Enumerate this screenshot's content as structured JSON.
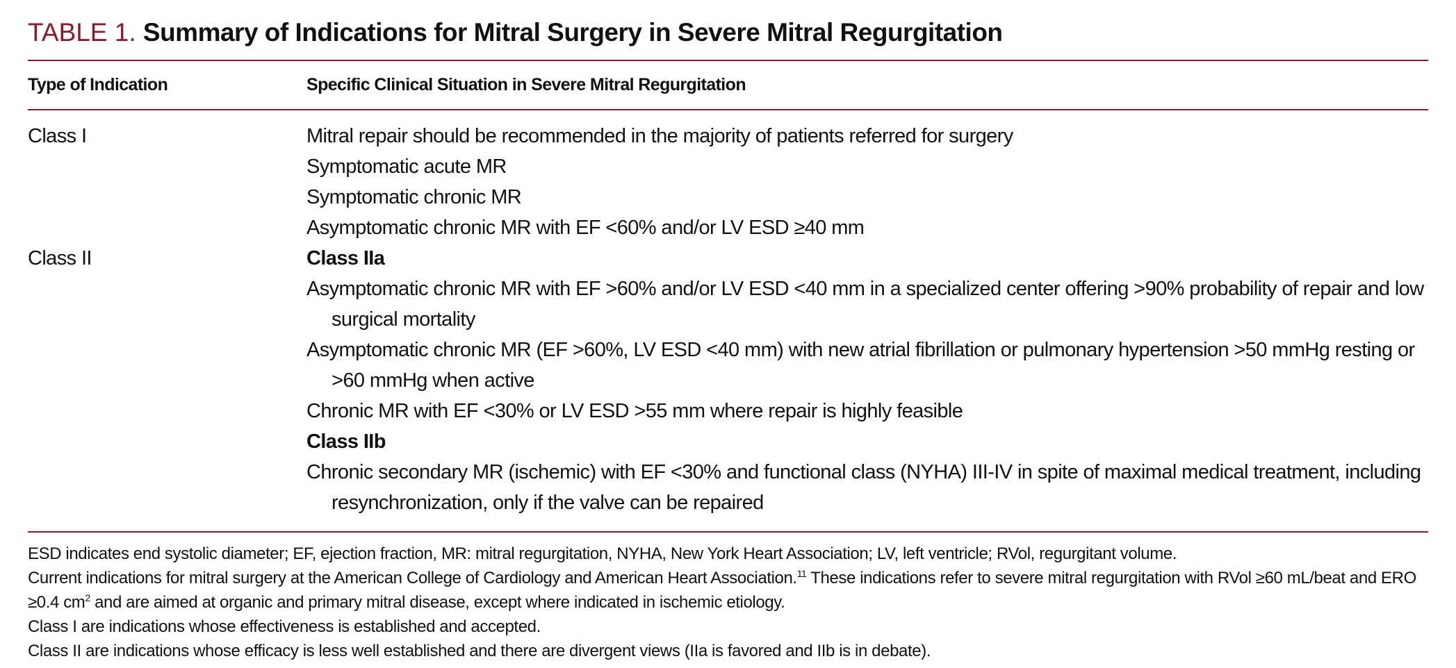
{
  "title": {
    "label": "TABLE 1.",
    "text": "Summary of Indications for Mitral Surgery in Severe Mitral Regurgitation"
  },
  "table": {
    "header": [
      "Type of Indication",
      "Specific Clinical Situation in Severe Mitral Regurgitation"
    ],
    "rows": [
      {
        "type": "Class I",
        "groups": [
          {
            "items": [
              "Mitral repair should be recommended in the majority of patients referred for surgery",
              "Symptomatic acute MR",
              "Symptomatic chronic MR",
              "Asymptomatic chronic MR with EF <60% and/or LV ESD ≥40 mm"
            ]
          }
        ]
      },
      {
        "type": "Class II",
        "groups": [
          {
            "heading": "Class IIa",
            "items": [
              "Asymptomatic chronic MR with EF >60% and/or LV ESD <40 mm in a specialized center offering >90% probability of repair and low surgical mortality",
              "Asymptomatic chronic MR (EF >60%, LV ESD <40 mm) with new atrial fibrillation or pulmonary hypertension >50 mmHg resting or >60 mmHg when active",
              "Chronic MR with EF <30% or LV ESD >55 mm where repair is highly feasible"
            ]
          },
          {
            "heading": "Class IIb",
            "items": [
              "Chronic secondary MR (ischemic) with EF <30% and functional class (NYHA) III-IV in spite of maximal medical treatment, including resynchronization, only if the valve can be repaired"
            ]
          }
        ]
      }
    ]
  },
  "footnotes": [
    [
      "ESD indicates end systolic diameter; EF, ejection fraction, MR: mitral regurgitation, NYHA, New York Heart Association; LV, left ventricle; RVol, regurgitant volume."
    ],
    [
      "Current indications for mitral surgery at the American College of Cardiology and American Heart Association.",
      {
        "sup": "11"
      },
      " These indications refer to severe mitral regurgitation with RVol ≥60 mL/beat and ERO ≥0.4 cm",
      {
        "sup": "2"
      },
      " and are aimed at organic and primary mitral disease, except where indicated in ischemic etiology."
    ],
    [
      "Class I are indications whose effectiveness is established and accepted."
    ],
    [
      "Class II are indications whose efficacy is less well established and there are divergent views (IIa is favored and IIb is in debate)."
    ]
  ]
}
